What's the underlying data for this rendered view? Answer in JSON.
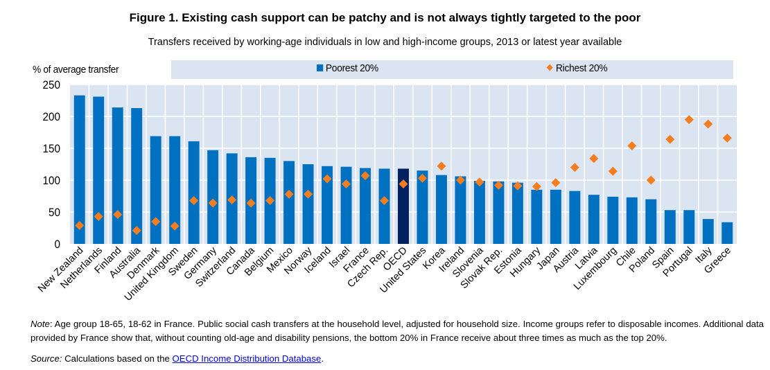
{
  "chart_data": {
    "type": "bar",
    "title": "Figure 1. Existing cash support can be patchy and is not always tightly targeted to the poor",
    "subtitle": "Transfers received by working-age individuals in low and high-income groups, 2013 or latest year available",
    "ylabel": "% of average transfer",
    "xlabel": "",
    "ylim": [
      0,
      250
    ],
    "yticks": [
      0,
      50,
      100,
      150,
      200,
      250
    ],
    "grid": true,
    "legend_position": "top",
    "categories": [
      "New Zealand",
      "Netherlands",
      "Finland",
      "Australia",
      "Denmark",
      "United Kingdom",
      "Sweden",
      "Germany",
      "Switzerland",
      "Canada",
      "Belgium",
      "Mexico",
      "Norway",
      "Iceland",
      "Israel",
      "France",
      "Czech Rep.",
      "OECD",
      "United States",
      "Korea",
      "Ireland",
      "Slovenia",
      "Slovak Rep.",
      "Estonia",
      "Hungary",
      "Japan",
      "Austria",
      "Latvia",
      "Luxembourg",
      "Chile",
      "Poland",
      "Spain",
      "Portugal",
      "Italy",
      "Greece"
    ],
    "highlight_category": "OECD",
    "series": [
      {
        "name": "Poorest 20%",
        "type": "bar",
        "color": "#0070c0",
        "highlight_color": "#002060",
        "values": [
          233,
          231,
          214,
          213,
          169,
          169,
          161,
          147,
          142,
          136,
          135,
          130,
          125,
          122,
          121,
          119,
          118,
          118,
          115,
          108,
          106,
          99,
          98,
          96,
          85,
          85,
          83,
          77,
          74,
          73,
          70,
          53,
          53,
          39,
          34
        ]
      },
      {
        "name": "Richest 20%",
        "type": "scatter",
        "marker": "diamond",
        "color": "#f47d20",
        "values": [
          29,
          43,
          46,
          21,
          35,
          28,
          68,
          64,
          69,
          64,
          68,
          78,
          78,
          102,
          94,
          107,
          68,
          94,
          103,
          122,
          100,
          97,
          92,
          91,
          90,
          96,
          120,
          134,
          114,
          154,
          100,
          164,
          195,
          188,
          166
        ]
      }
    ]
  },
  "legend": {
    "poorest_label": "Poorest 20%",
    "richest_label": "Richest 20%"
  },
  "footer": {
    "note_label": "Note",
    "note_text": ": Age group 18-65, 18-62 in France. Public social cash transfers at the household level, adjusted for household size. Income groups refer to disposable incomes. Additional data provided by France show that, without counting old-age and disability pensions, the bottom 20% in France receive about three times as much as the top 20%.",
    "source_label": "Source:",
    "source_text": " Calculations based on the ",
    "source_link": "OECD Income Distribution Database",
    "source_end": "."
  }
}
